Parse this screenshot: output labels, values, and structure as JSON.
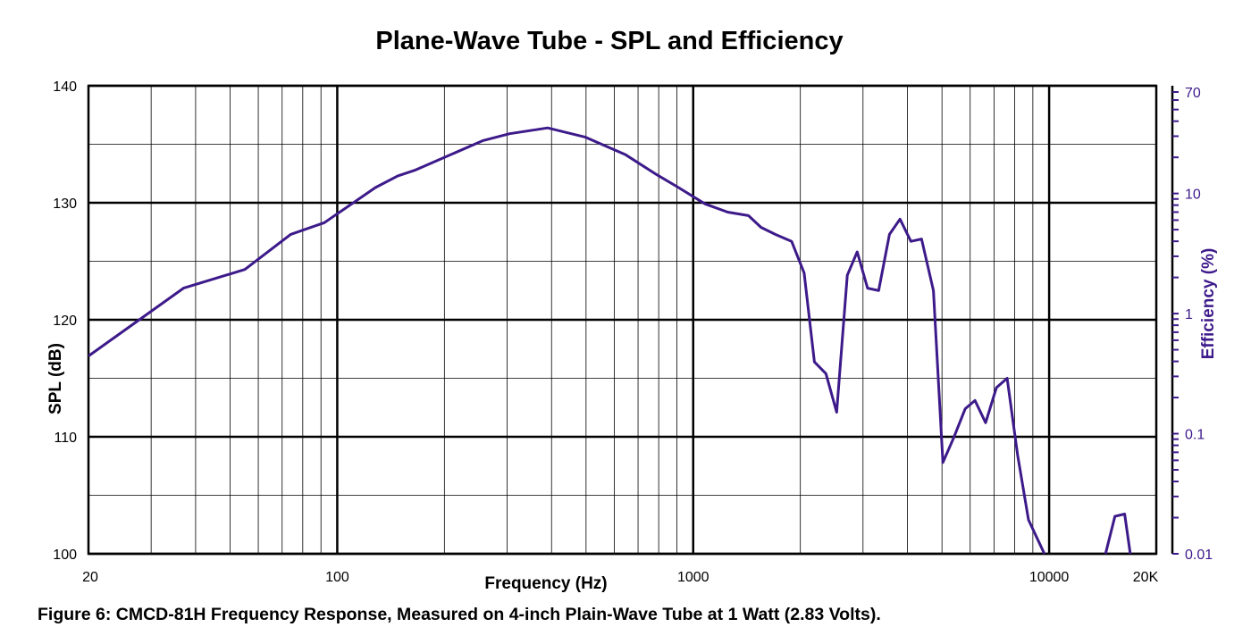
{
  "chart_data": {
    "type": "line",
    "title": "Plane-Wave Tube - SPL and Efficiency",
    "caption": "Figure 6: CMCD-81H Frequency Response, Measured on 4-inch Plain-Wave Tube at 1 Watt (2.83 Volts).",
    "xlabel": "Frequency (Hz)",
    "ylabel": "SPL (dB)",
    "y2label": "Efficiency (%)",
    "x_scale": "log",
    "xlim": [
      20,
      20000
    ],
    "ylim": [
      100,
      140
    ],
    "y2_scale": "log",
    "y2lim": [
      0.01,
      70
    ],
    "grid": true,
    "x_ticks": [
      {
        "v": 20,
        "label": "20"
      },
      {
        "v": 100,
        "label": "100"
      },
      {
        "v": 1000,
        "label": "1000"
      },
      {
        "v": 10000,
        "label": "10000"
      },
      {
        "v": 20000,
        "label": "20K"
      }
    ],
    "y_ticks": [
      {
        "v": 100,
        "label": "100"
      },
      {
        "v": 110,
        "label": "110"
      },
      {
        "v": 120,
        "label": "120"
      },
      {
        "v": 130,
        "label": "130"
      },
      {
        "v": 140,
        "label": "140"
      }
    ],
    "y2_ticks": [
      {
        "v": 0.01,
        "label": "0.01"
      },
      {
        "v": 0.1,
        "label": "0.1"
      },
      {
        "v": 1,
        "label": "1"
      },
      {
        "v": 10,
        "label": "10"
      },
      {
        "v": 70,
        "label": "70"
      }
    ],
    "colors": {
      "series": "#3d1a8a",
      "grid": "#000000",
      "right_axis": "#3d1a8a"
    },
    "series": [
      {
        "segments": [
          [
            [
              20,
              116.9
            ],
            [
              37,
              122.7
            ],
            [
              55,
              124.3
            ],
            [
              74,
              127.3
            ],
            [
              92,
              128.3
            ],
            [
              128,
              131.3
            ],
            [
              148,
              132.3
            ],
            [
              166,
              132.8
            ],
            [
              256,
              135.3
            ],
            [
              305,
              135.9
            ],
            [
              390,
              136.4
            ],
            [
              498,
              135.6
            ],
            [
              646,
              134.1
            ],
            [
              790,
              132.4
            ],
            [
              910,
              131.3
            ],
            [
              1080,
              129.9
            ],
            [
              1250,
              129.2
            ],
            [
              1430,
              128.9
            ],
            [
              1550,
              127.9
            ],
            [
              1700,
              127.3
            ],
            [
              1890,
              126.7
            ],
            [
              2050,
              124.0
            ],
            [
              2190,
              116.4
            ],
            [
              2360,
              115.4
            ],
            [
              2530,
              112.1
            ],
            [
              2710,
              123.8
            ],
            [
              2890,
              125.8
            ],
            [
              3090,
              122.7
            ],
            [
              3320,
              122.5
            ],
            [
              3560,
              127.3
            ],
            [
              3810,
              128.6
            ],
            [
              4090,
              126.7
            ],
            [
              4380,
              126.9
            ],
            [
              4730,
              122.5
            ],
            [
              5030,
              107.8
            ],
            [
              5390,
              109.9
            ],
            [
              5810,
              112.4
            ],
            [
              6190,
              113.1
            ],
            [
              6630,
              111.2
            ],
            [
              7110,
              114.2
            ],
            [
              7620,
              115.0
            ],
            [
              8160,
              108.4
            ],
            [
              8750,
              102.9
            ],
            [
              9700,
              100.0
            ]
          ],
          [
            [
              14400,
              100.0
            ],
            [
              15300,
              103.2
            ],
            [
              16300,
              103.4
            ],
            [
              16900,
              100.0
            ]
          ]
        ]
      }
    ]
  }
}
